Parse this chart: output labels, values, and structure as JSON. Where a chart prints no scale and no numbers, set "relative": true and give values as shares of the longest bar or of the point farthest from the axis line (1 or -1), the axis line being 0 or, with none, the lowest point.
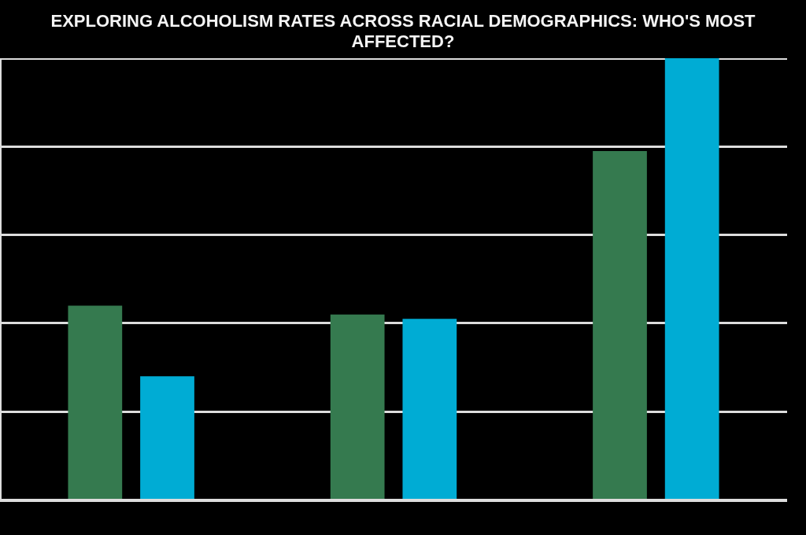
{
  "chart_data": {
    "type": "bar",
    "title": "EXPLORING ALCOHOLISM RATES ACROSS RACIAL DEMOGRAPHICS: WHO'S MOST AFFECTED?",
    "relative": true,
    "categories": [
      null,
      null,
      null
    ],
    "series": [
      {
        "color": "#357a4f",
        "values": [
          0.44,
          0.42,
          0.79
        ]
      },
      {
        "color": "#00acd4",
        "values": [
          0.28,
          0.41,
          1
        ]
      }
    ],
    "grid": "y"
  }
}
